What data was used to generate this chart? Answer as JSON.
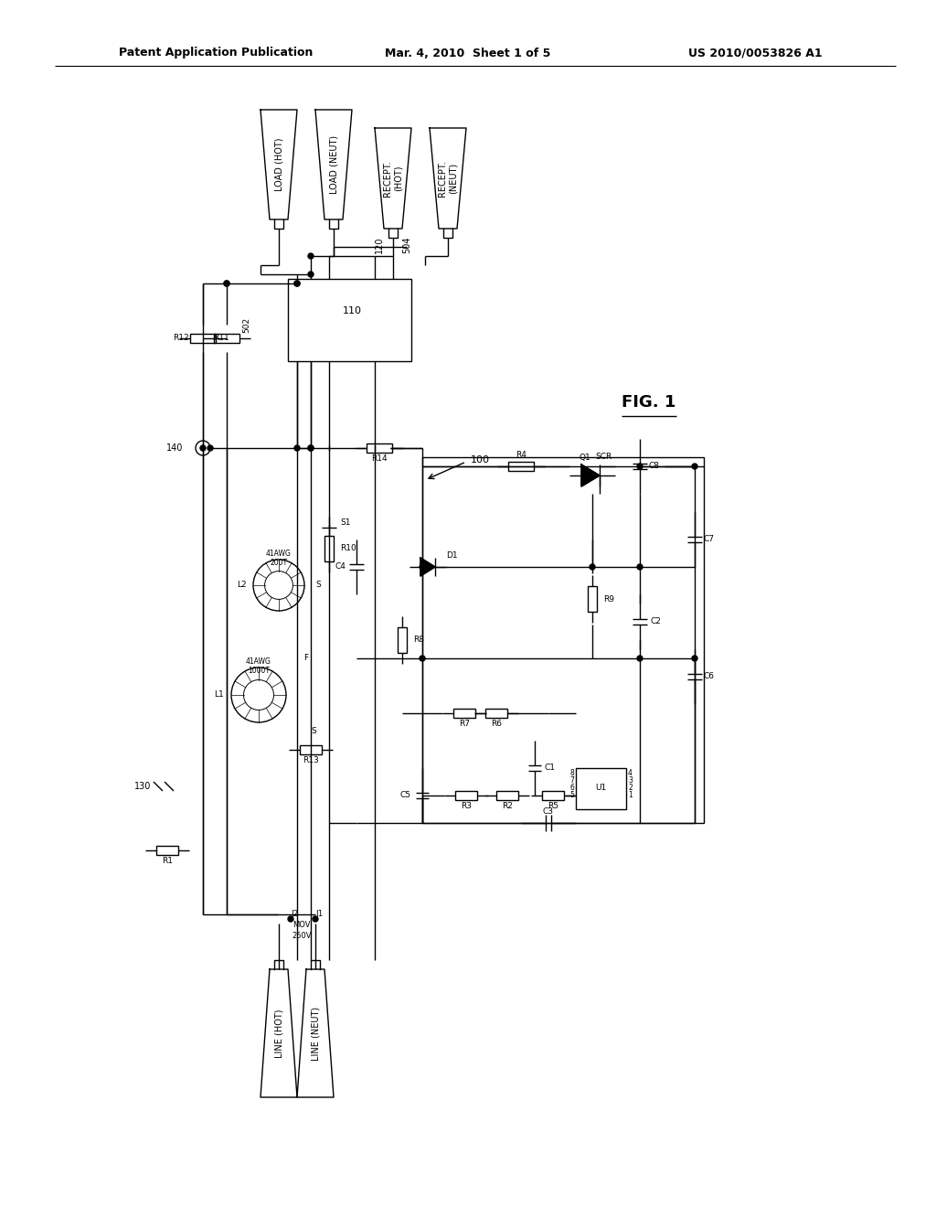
{
  "title_left": "Patent Application Publication",
  "title_center": "Mar. 4, 2010  Sheet 1 of 5",
  "title_right": "US 2010/0053826 A1",
  "fig_label": "FIG. 1",
  "background": "#ffffff",
  "lw": 1.0
}
